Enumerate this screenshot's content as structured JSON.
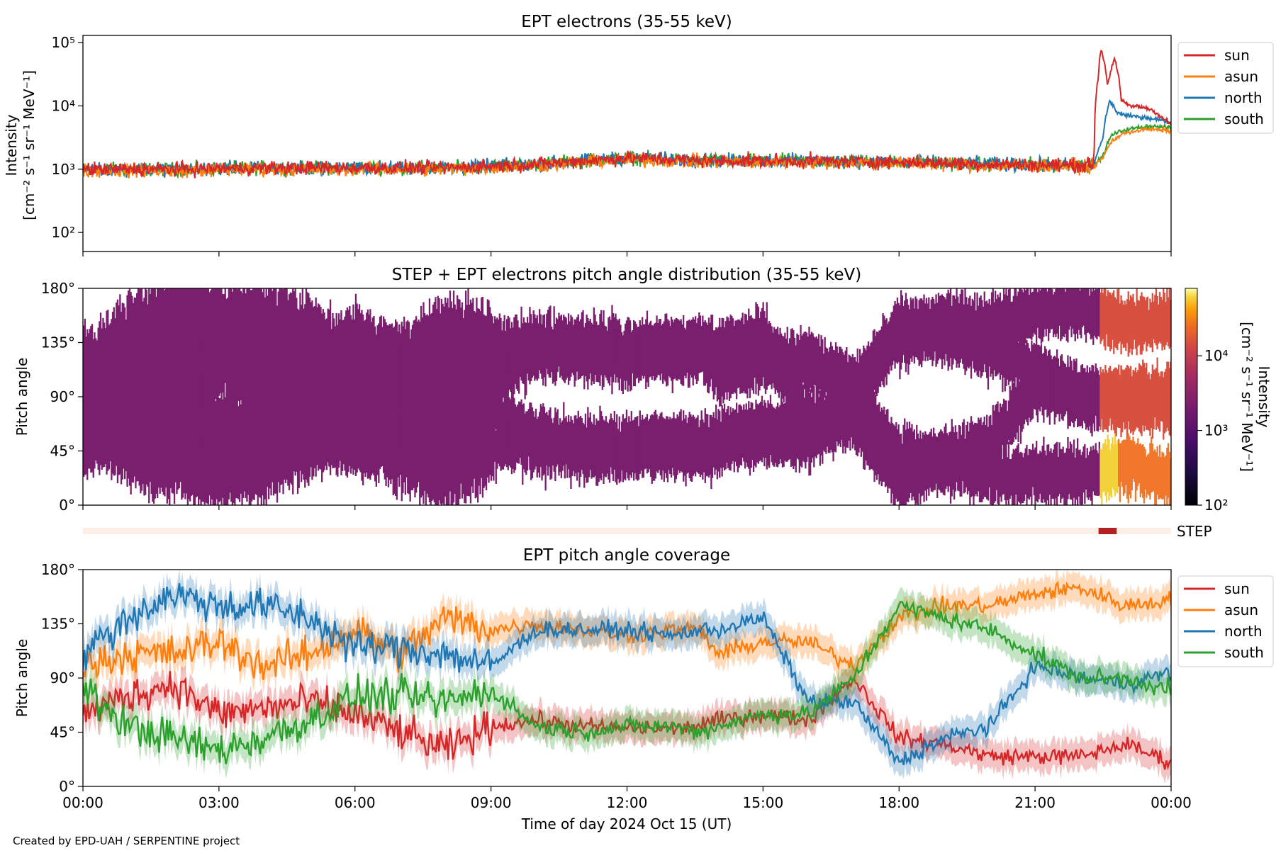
{
  "footer": "Created by EPD-UAH / SERPENTINE project",
  "xlabel": "Time of day 2024 Oct 15 (UT)",
  "time_ticks": [
    "00:00",
    "03:00",
    "06:00",
    "09:00",
    "12:00",
    "15:00",
    "18:00",
    "21:00",
    "00:00"
  ],
  "colors": {
    "sun": "#d62728",
    "asun": "#ff7f0e",
    "north": "#1f77b4",
    "south": "#2ca02c",
    "step_bar": "#b22222",
    "step_bg": "#fdeee6"
  },
  "chart_data": [
    {
      "type": "line",
      "title": "EPT electrons (35-55 keV)",
      "ylabel_line1": "Intensity",
      "ylabel_line2": "[cm⁻² s⁻¹ sr⁻¹ MeV⁻¹]",
      "yscale": "log",
      "ylim": [
        50,
        130000
      ],
      "yticks": [
        {
          "value": 100,
          "label": "10²"
        },
        {
          "value": 1000,
          "label": "10³"
        },
        {
          "value": 10000,
          "label": "10⁴"
        },
        {
          "value": 100000,
          "label": "10⁵"
        }
      ],
      "xlim_hours": [
        0,
        24
      ],
      "legend": {
        "placement": "outside-right",
        "entries": [
          "sun",
          "asun",
          "north",
          "south"
        ]
      },
      "series": [
        {
          "name": "sun",
          "color": "#d62728",
          "x": [
            0,
            2,
            4,
            6,
            8,
            10,
            12,
            14,
            16,
            18,
            20,
            22,
            22.3,
            22.4,
            22.45,
            22.6,
            22.75,
            22.9,
            23.1,
            23.4,
            23.6,
            23.8,
            24
          ],
          "y": [
            1000,
            1000,
            1050,
            1050,
            1050,
            1200,
            1500,
            1350,
            1350,
            1300,
            1200,
            1150,
            1200,
            30000,
            80000,
            20000,
            55000,
            12000,
            10000,
            9500,
            8500,
            6500,
            5000
          ]
        },
        {
          "name": "asun",
          "color": "#ff7f0e",
          "x": [
            0,
            2,
            4,
            6,
            8,
            10,
            12,
            14,
            16,
            18,
            20,
            22,
            22.3,
            22.5,
            22.7,
            23,
            23.5,
            24
          ],
          "y": [
            950,
            950,
            1000,
            1000,
            1000,
            1150,
            1400,
            1300,
            1300,
            1250,
            1150,
            1100,
            1100,
            1500,
            2800,
            3800,
            4300,
            4000
          ]
        },
        {
          "name": "north",
          "color": "#1f77b4",
          "x": [
            0,
            2,
            4,
            6,
            8,
            10,
            12,
            14,
            16,
            18,
            20,
            22,
            22.3,
            22.5,
            22.65,
            22.8,
            23,
            23.5,
            24
          ],
          "y": [
            1000,
            1000,
            1050,
            1050,
            1050,
            1200,
            1500,
            1350,
            1350,
            1300,
            1200,
            1150,
            1150,
            3000,
            12000,
            8000,
            7000,
            6500,
            5500
          ]
        },
        {
          "name": "south",
          "color": "#2ca02c",
          "x": [
            0,
            2,
            4,
            6,
            8,
            10,
            12,
            14,
            16,
            18,
            20,
            22,
            22.3,
            22.5,
            22.7,
            23,
            23.5,
            24
          ],
          "y": [
            1000,
            1000,
            1050,
            1050,
            1050,
            1200,
            1500,
            1350,
            1350,
            1300,
            1200,
            1150,
            1150,
            1600,
            3500,
            4200,
            4800,
            4500
          ]
        }
      ]
    },
    {
      "type": "heatmap",
      "title": "STEP + EPT electrons pitch angle distribution (35-55 keV)",
      "ylabel": "Pitch angle",
      "ylim": [
        0,
        180
      ],
      "yticks": [
        {
          "value": 0,
          "label": "0°"
        },
        {
          "value": 45,
          "label": "45°"
        },
        {
          "value": 90,
          "label": "90°"
        },
        {
          "value": 135,
          "label": "135°"
        },
        {
          "value": 180,
          "label": "180°"
        }
      ],
      "xlim_hours": [
        0,
        24
      ],
      "colorbar": {
        "label_line1": "Intensity",
        "label_line2": "[cm⁻² s⁻¹ sr⁻¹ MeV⁻¹]",
        "scale": "log",
        "range": [
          100,
          80000
        ],
        "ticks": [
          {
            "value": 100,
            "label": "10²"
          },
          {
            "value": 1000,
            "label": "10³"
          },
          {
            "value": 10000,
            "label": "10⁴"
          }
        ],
        "colormap": "inferno",
        "placement": "right"
      }
    },
    {
      "type": "bar",
      "label": "STEP",
      "xlim_hours": [
        0,
        24
      ],
      "active_interval_hours": [
        22.4,
        22.8
      ]
    },
    {
      "type": "area",
      "title": "EPT pitch angle coverage",
      "ylabel": "Pitch angle",
      "ylim": [
        0,
        180
      ],
      "yticks": [
        {
          "value": 0,
          "label": "0°"
        },
        {
          "value": 45,
          "label": "45°"
        },
        {
          "value": 90,
          "label": "90°"
        },
        {
          "value": 135,
          "label": "135°"
        },
        {
          "value": 180,
          "label": "180°"
        }
      ],
      "xlim_hours": [
        0,
        24
      ],
      "legend": {
        "placement": "outside-right",
        "entries": [
          "sun",
          "asun",
          "north",
          "south"
        ]
      },
      "series": [
        {
          "name": "sun",
          "color": "#d62728",
          "x": [
            0,
            1,
            2,
            3,
            4,
            5,
            6,
            7,
            8,
            9,
            10,
            11,
            12,
            13,
            13.6,
            14,
            15,
            16,
            17,
            18,
            19,
            20,
            21,
            22,
            23,
            24
          ],
          "y": [
            60,
            75,
            85,
            60,
            65,
            70,
            60,
            45,
            30,
            50,
            55,
            50,
            48,
            48,
            50,
            55,
            60,
            55,
            90,
            40,
            35,
            25,
            25,
            25,
            35,
            20
          ]
        },
        {
          "name": "asun",
          "color": "#ff7f0e",
          "x": [
            0,
            1,
            2,
            3,
            4,
            5,
            6,
            7,
            8,
            9,
            10,
            11,
            12,
            13,
            13.6,
            14,
            15,
            16,
            17,
            18,
            19,
            20,
            21,
            22,
            23,
            24
          ],
          "y": [
            100,
            110,
            110,
            120,
            100,
            110,
            130,
            110,
            140,
            130,
            135,
            130,
            125,
            130,
            130,
            110,
            120,
            120,
            100,
            140,
            150,
            150,
            160,
            165,
            150,
            155
          ]
        },
        {
          "name": "north",
          "color": "#1f77b4",
          "x": [
            0,
            1,
            2,
            3,
            4,
            5,
            6,
            7,
            8,
            9,
            10,
            11,
            12,
            13,
            13.6,
            14,
            15,
            16,
            17,
            18,
            19,
            20,
            21,
            22,
            23,
            24
          ],
          "y": [
            110,
            140,
            160,
            150,
            150,
            140,
            115,
            115,
            110,
            100,
            130,
            130,
            130,
            125,
            130,
            130,
            140,
            70,
            70,
            20,
            40,
            50,
            100,
            90,
            85,
            95
          ]
        },
        {
          "name": "south",
          "color": "#2ca02c",
          "x": [
            0,
            1,
            2,
            3,
            4,
            5,
            6,
            7,
            8,
            9,
            10,
            11,
            12,
            13,
            13.6,
            14,
            15,
            16,
            17,
            18,
            19,
            20,
            21,
            22,
            23,
            24
          ],
          "y": [
            80,
            50,
            40,
            30,
            40,
            55,
            75,
            75,
            70,
            80,
            50,
            45,
            50,
            50,
            45,
            50,
            60,
            60,
            90,
            150,
            140,
            130,
            110,
            90,
            90,
            80
          ]
        }
      ]
    }
  ]
}
